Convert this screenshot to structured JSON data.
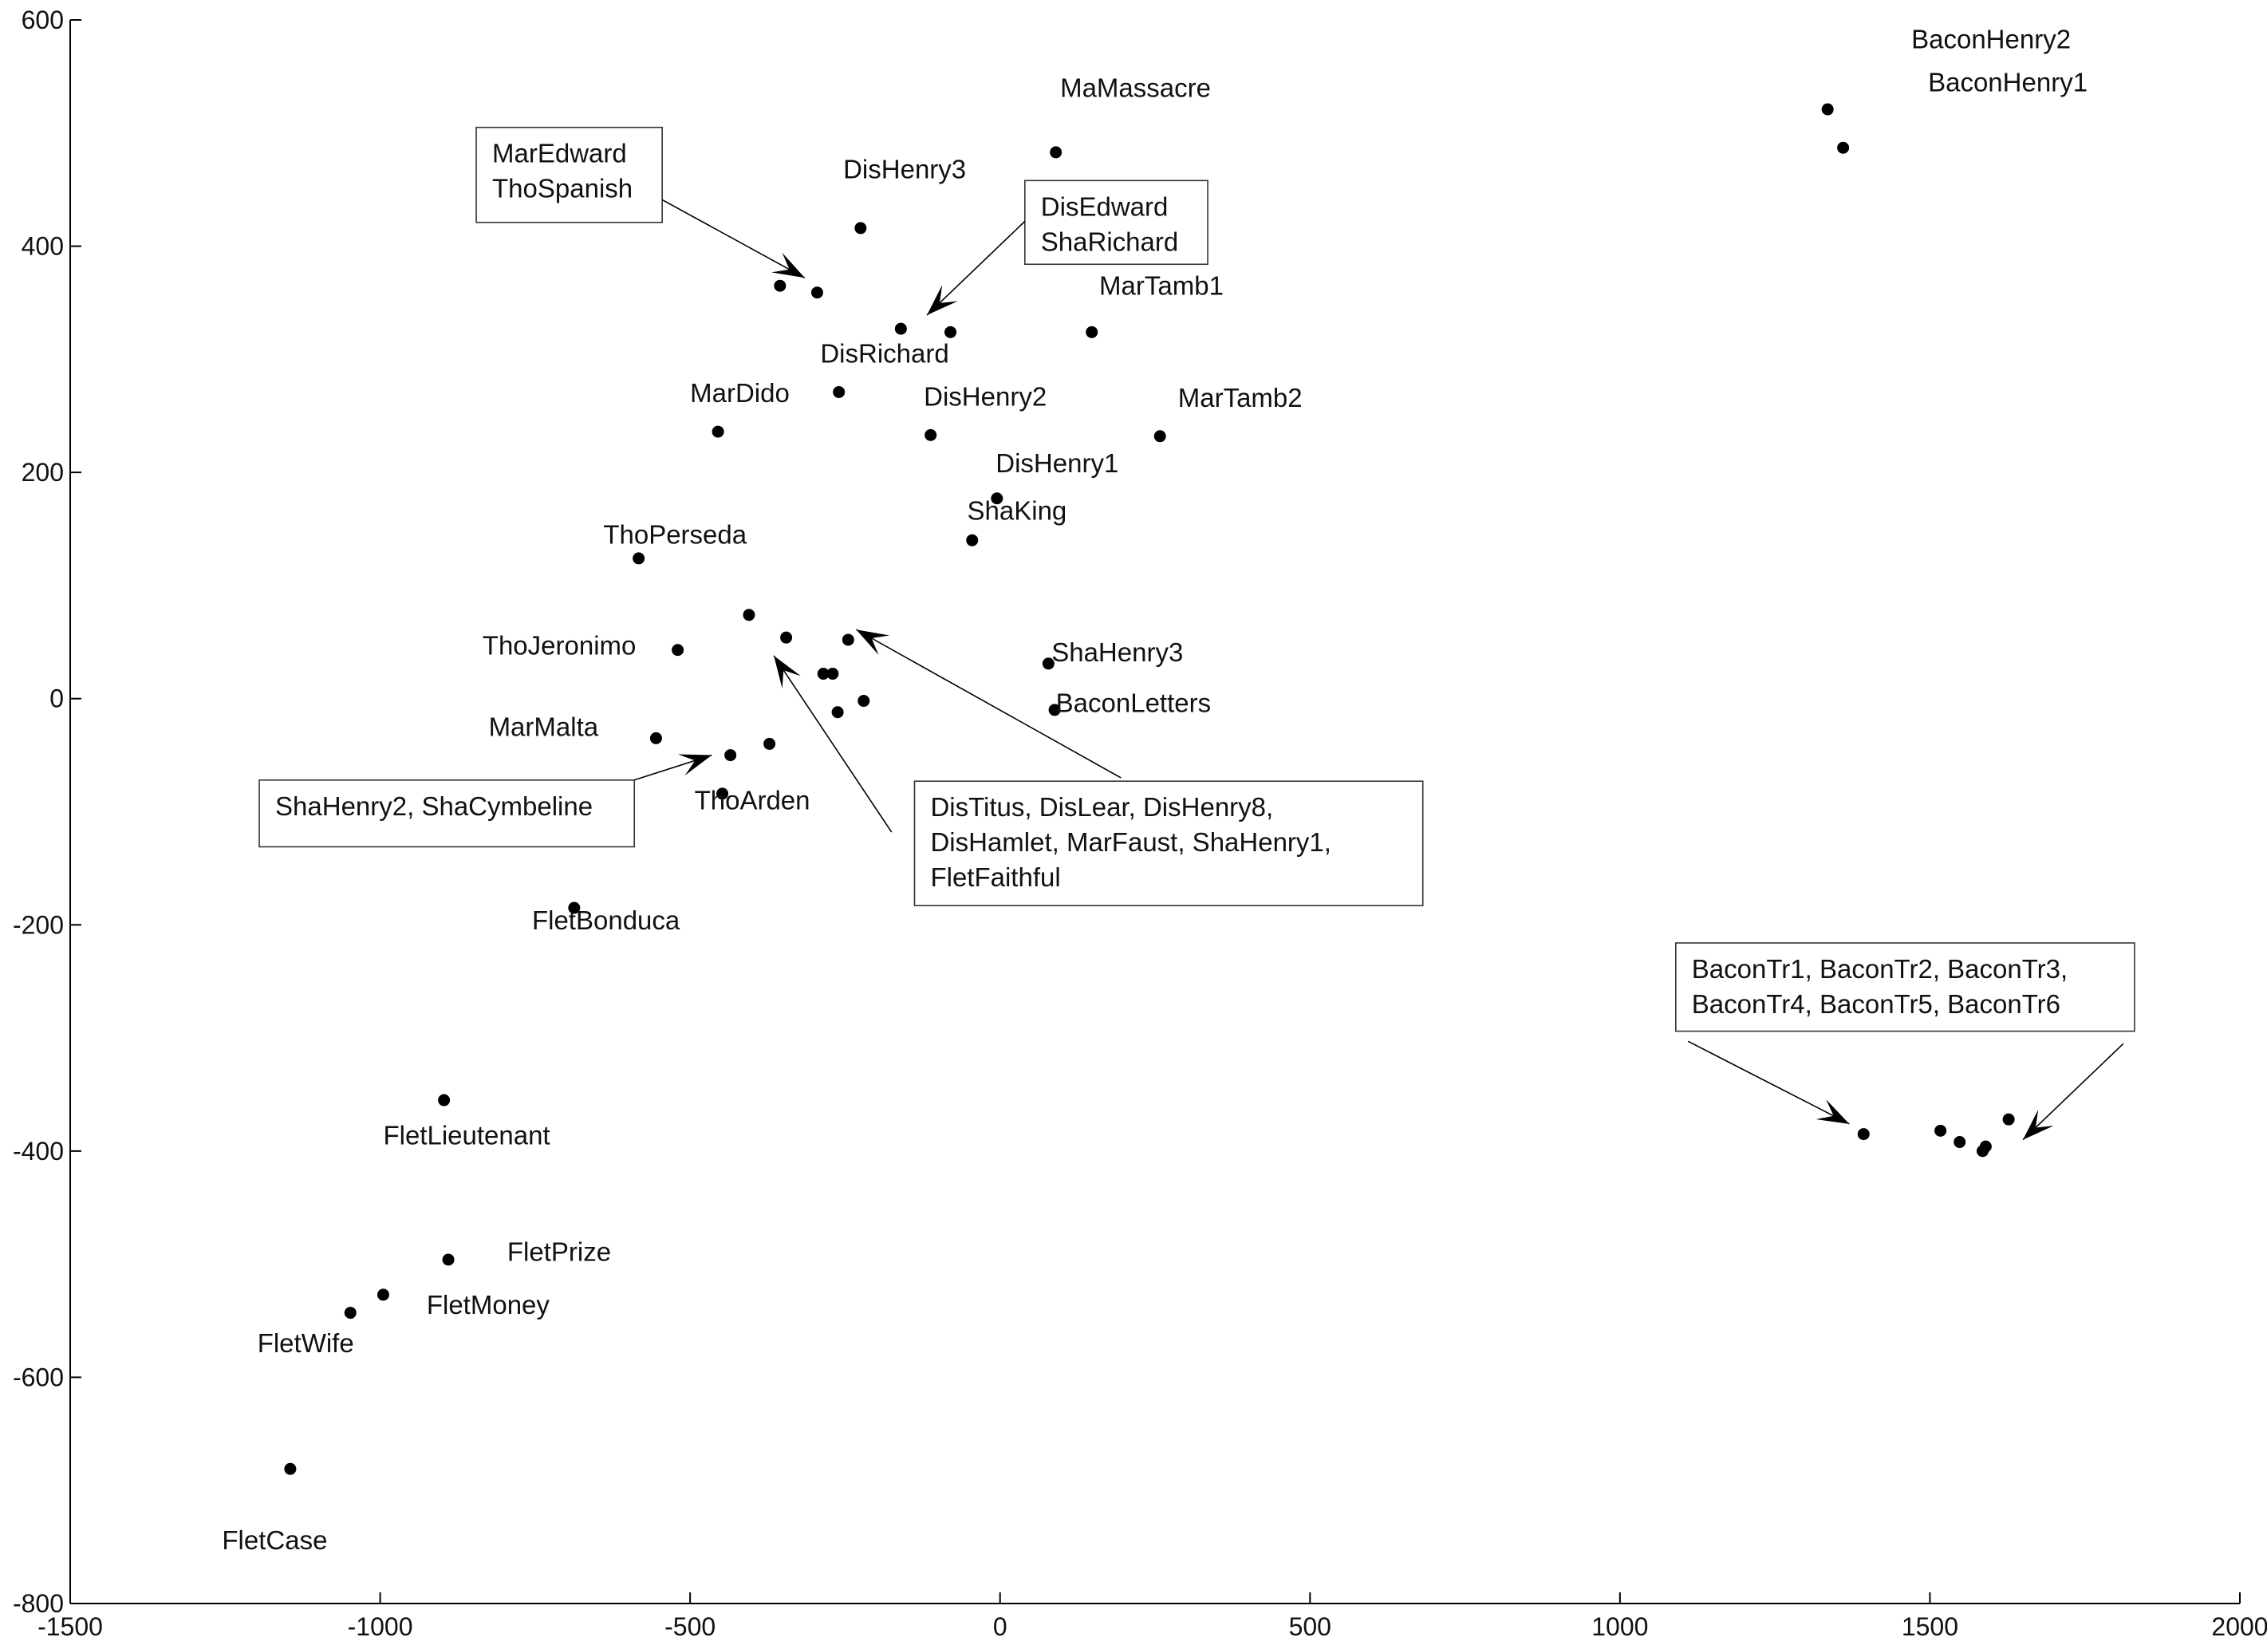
{
  "chart_data": {
    "type": "scatter",
    "title": "",
    "xlabel": "",
    "ylabel": "",
    "xlim": [
      -1500,
      2000
    ],
    "ylim": [
      -800,
      600
    ],
    "grid": false,
    "xticks": [
      -1500,
      -1000,
      -500,
      0,
      500,
      1000,
      1500,
      2000
    ],
    "yticks": [
      -800,
      -600,
      -400,
      -200,
      0,
      200,
      400,
      600
    ],
    "points": [
      {
        "x": 1335,
        "y": 521
      },
      {
        "x": 1360,
        "y": 487
      },
      {
        "x": 90,
        "y": 483
      },
      {
        "x": -225,
        "y": 416
      },
      {
        "x": -355,
        "y": 365
      },
      {
        "x": -295,
        "y": 359
      },
      {
        "x": -160,
        "y": 327
      },
      {
        "x": -80,
        "y": 324
      },
      {
        "x": 148,
        "y": 324
      },
      {
        "x": -260,
        "y": 271
      },
      {
        "x": -455,
        "y": 236
      },
      {
        "x": -112,
        "y": 233
      },
      {
        "x": 258,
        "y": 232
      },
      {
        "x": -5,
        "y": 177
      },
      {
        "x": -45,
        "y": 140
      },
      {
        "x": -583,
        "y": 124
      },
      {
        "x": -405,
        "y": 74
      },
      {
        "x": -345,
        "y": 54
      },
      {
        "x": -245,
        "y": 52
      },
      {
        "x": -520,
        "y": 43
      },
      {
        "x": 78,
        "y": 31
      },
      {
        "x": -285,
        "y": 22
      },
      {
        "x": -270,
        "y": 22
      },
      {
        "x": -220,
        "y": -2
      },
      {
        "x": 88,
        "y": -10
      },
      {
        "x": -262,
        "y": -12
      },
      {
        "x": -555,
        "y": -35
      },
      {
        "x": -372,
        "y": -40
      },
      {
        "x": -435,
        "y": -50
      },
      {
        "x": -448,
        "y": -84
      },
      {
        "x": -687,
        "y": -185
      },
      {
        "x": -897,
        "y": -355
      },
      {
        "x": 1393,
        "y": -385
      },
      {
        "x": 1517,
        "y": -382
      },
      {
        "x": 1548,
        "y": -392
      },
      {
        "x": 1590,
        "y": -396
      },
      {
        "x": 1585,
        "y": -400
      },
      {
        "x": 1627,
        "y": -372
      },
      {
        "x": -890,
        "y": -496
      },
      {
        "x": -995,
        "y": -527
      },
      {
        "x": -1048,
        "y": -543
      },
      {
        "x": -1145,
        "y": -681
      }
    ],
    "labels": [
      {
        "text": "BaconHenry2",
        "x": 1470,
        "y": 575
      },
      {
        "text": "BaconHenry1",
        "x": 1497,
        "y": 537
      },
      {
        "text": "MaMassacre",
        "x": 97,
        "y": 532
      },
      {
        "text": "DisHenry3",
        "x": -253,
        "y": 460
      },
      {
        "text": "MarTamb1",
        "x": 160,
        "y": 357
      },
      {
        "text": "DisRichard",
        "x": -290,
        "y": 297
      },
      {
        "text": "MarDido",
        "x": -500,
        "y": 262
      },
      {
        "text": "DisHenry2",
        "x": -123,
        "y": 259
      },
      {
        "text": "MarTamb2",
        "x": 287,
        "y": 258
      },
      {
        "text": "DisHenry1",
        "x": -7,
        "y": 200
      },
      {
        "text": "ShaKing",
        "x": -53,
        "y": 158
      },
      {
        "text": "ThoPerseda",
        "x": -640,
        "y": 137
      },
      {
        "text": "ThoJeronimo",
        "x": -835,
        "y": 39
      },
      {
        "text": "ShaHenry3",
        "x": 83,
        "y": 33
      },
      {
        "text": "BaconLetters",
        "x": 90,
        "y": -12
      },
      {
        "text": "MarMalta",
        "x": -825,
        "y": -33
      },
      {
        "text": "ThoArden",
        "x": -493,
        "y": -98
      },
      {
        "text": "FletBonduca",
        "x": -755,
        "y": -204
      },
      {
        "text": "FletLieutenant",
        "x": -995,
        "y": -394
      },
      {
        "text": "FletPrize",
        "x": -795,
        "y": -497
      },
      {
        "text": "FletMoney",
        "x": -925,
        "y": -544
      },
      {
        "text": "FletWife",
        "x": -1198,
        "y": -578
      },
      {
        "text": "FletCase",
        "x": -1255,
        "y": -752
      }
    ],
    "annotations": [
      {
        "lines": [
          "MarEdward",
          "ThoSpanish"
        ],
        "box": {
          "x0": -845,
          "y0": 505,
          "x1": -545,
          "y1": 421
        },
        "arrows": [
          {
            "from": [
              -545,
              441
            ],
            "to": [
              -315,
              372
            ]
          }
        ]
      },
      {
        "lines": [
          "DisEdward",
          "ShaRichard"
        ],
        "box": {
          "x0": 40,
          "y0": 458,
          "x1": 335,
          "y1": 384
        },
        "arrows": [
          {
            "from": [
              40,
              422
            ],
            "to": [
              -118,
              339
            ]
          }
        ]
      },
      {
        "lines": [
          "ShaHenry2, ShaCymbeline"
        ],
        "box": {
          "x0": -1195,
          "y0": -72,
          "x1": -590,
          "y1": -131
        },
        "arrows": [
          {
            "from": [
              -590,
              -72
            ],
            "to": [
              -465,
              -50
            ]
          }
        ]
      },
      {
        "lines": [
          "DisTitus, DisLear, DisHenry8,",
          "DisHamlet, MarFaust, ShaHenry1,",
          "FletFaithful"
        ],
        "box": {
          "x0": -138,
          "y0": -73,
          "x1": 682,
          "y1": -183
        },
        "arrows": [
          {
            "from": [
              195,
              -70
            ],
            "to": [
              -232,
              61
            ]
          },
          {
            "from": [
              -175,
              -118
            ],
            "to": [
              -365,
              38
            ]
          }
        ]
      },
      {
        "lines": [
          "BaconTr1, BaconTr2, BaconTr3,",
          "BaconTr4, BaconTr5, BaconTr6"
        ],
        "box": {
          "x0": 1090,
          "y0": -216,
          "x1": 1830,
          "y1": -294
        },
        "arrows": [
          {
            "from": [
              1110,
              -303
            ],
            "to": [
              1370,
              -376
            ]
          },
          {
            "from": [
              1812,
              -305
            ],
            "to": [
              1650,
              -390
            ]
          }
        ]
      }
    ]
  }
}
